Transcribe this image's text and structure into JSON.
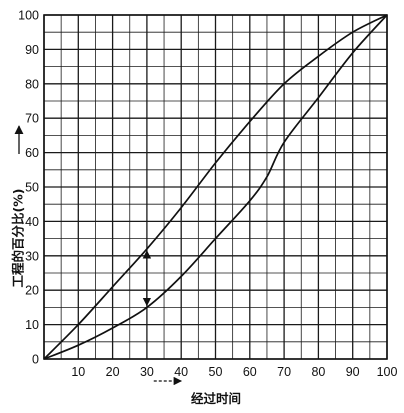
{
  "chart_data": {
    "type": "line",
    "xlabel": "经过时间",
    "ylabel": "工程的百分比(%)",
    "xlim": [
      0,
      100
    ],
    "ylim": [
      0,
      100
    ],
    "x_ticks": [
      10,
      20,
      30,
      40,
      50,
      60,
      70,
      80,
      90,
      100
    ],
    "x_tick_labels": [
      "10",
      "20",
      "30",
      "40",
      "50",
      "60",
      "70",
      "80",
      "90",
      "100"
    ],
    "y_ticks": [
      0,
      10,
      20,
      30,
      40,
      50,
      60,
      70,
      80,
      90,
      100
    ],
    "y_tick_labels": [
      "0",
      "10",
      "20",
      "30",
      "40",
      "50",
      "60",
      "70",
      "80",
      "90",
      "100"
    ],
    "grid": true,
    "grid_major_step": 10,
    "grid_minor_step": 5,
    "series": [
      {
        "x": [
          0,
          10,
          20,
          30,
          40,
          50,
          60,
          70,
          80,
          90,
          100
        ],
        "values": [
          0,
          10,
          21,
          32,
          44,
          57,
          69,
          80,
          88,
          95,
          100
        ]
      },
      {
        "x": [
          0,
          10,
          20,
          30,
          40,
          50,
          60,
          65,
          70,
          80,
          90,
          100
        ],
        "values": [
          0,
          4,
          9,
          15,
          24,
          35,
          46,
          53,
          63,
          76,
          89,
          100
        ]
      }
    ],
    "annotations": [
      {
        "type": "double-arrow",
        "x": 30,
        "y_from": 15,
        "y_to": 32
      },
      {
        "type": "time-arrow",
        "from": 32,
        "to": 40
      }
    ]
  }
}
